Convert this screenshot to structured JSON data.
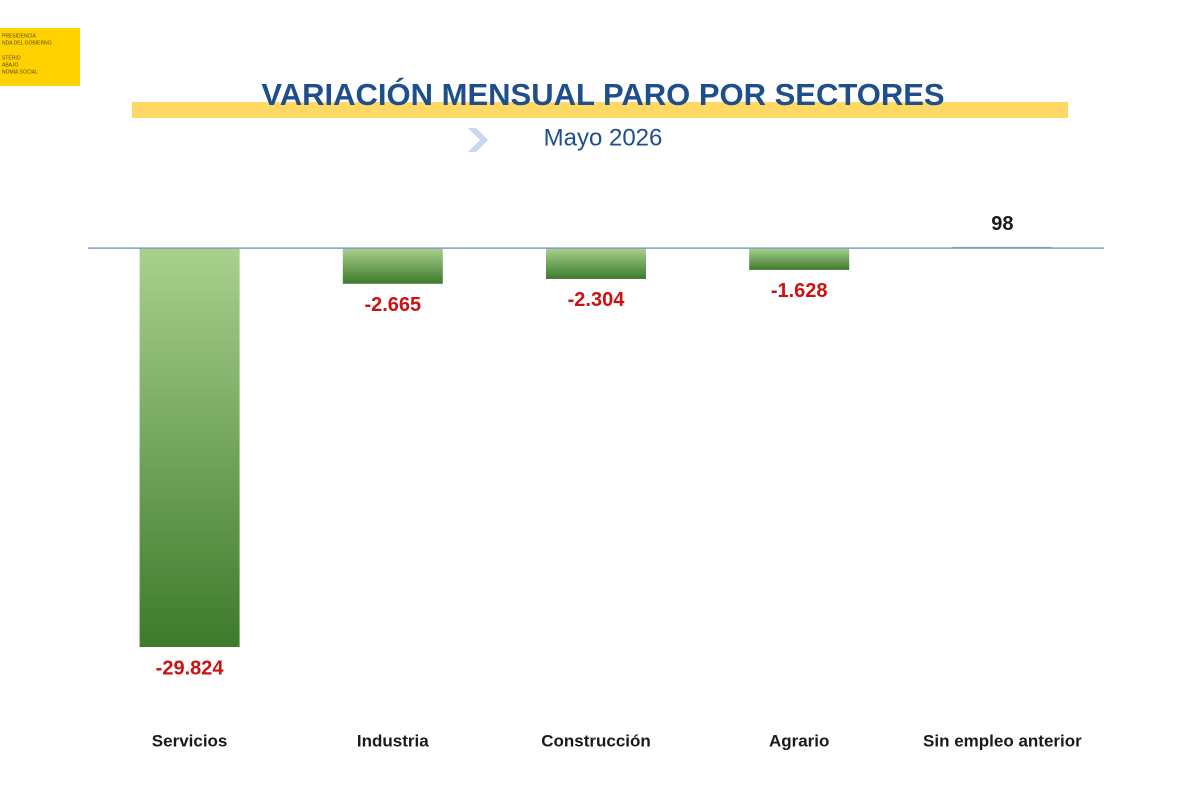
{
  "logo_text": [
    "PRESIDENCIA",
    "NDA DEL GOBIERNO",
    "STERIO",
    "ABAJO",
    "NOMÍA SOCIAL"
  ],
  "chart_data": {
    "type": "bar",
    "title": "VARIACIÓN MENSUAL PARO POR SECTORES",
    "subtitle": "Mayo 2026",
    "categories": [
      "Servicios",
      "Industria",
      "Construcción",
      "Agrario",
      "Sin empleo anterior"
    ],
    "values": [
      -29824,
      -2665,
      -2304,
      -1628,
      98
    ],
    "value_labels": [
      "-29.824",
      "-2.665",
      "-2.304",
      "-1.628",
      "98"
    ],
    "colors": [
      "#a9d18e",
      "#3d7a2b"
    ],
    "negative_label_color": "#cc1111",
    "label_color": "#1a1a1a",
    "ylim": [
      -30000,
      3000
    ]
  }
}
